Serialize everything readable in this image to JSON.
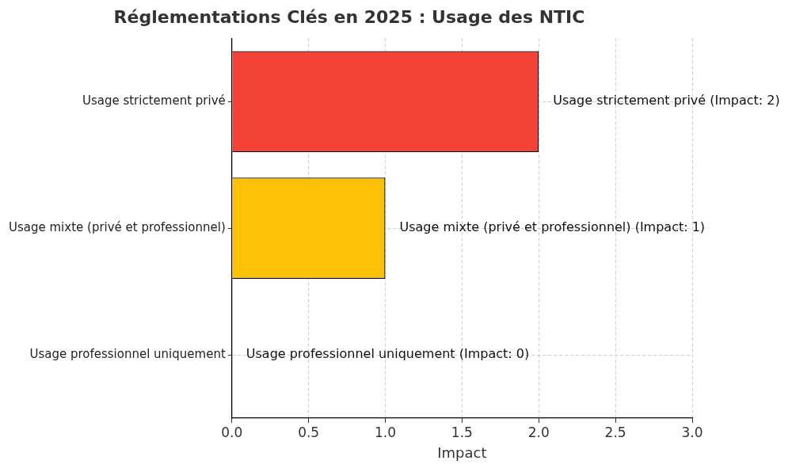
{
  "chart_data": {
    "type": "bar",
    "orientation": "horizontal",
    "title": "Réglementations Clés en 2025 : Usage des NTIC",
    "xlabel": "Impact",
    "categories": [
      "Usage strictement privé",
      "Usage mixte (privé et professionnel)",
      "Usage professionnel uniquement"
    ],
    "values": [
      2,
      1,
      0
    ],
    "colors": [
      "#f44336",
      "#ffc107",
      "#4caf50"
    ],
    "xlim": [
      0,
      3
    ],
    "xticks": [
      {
        "value": 0,
        "label": "0.0"
      },
      {
        "value": 0.5,
        "label": "0.5"
      },
      {
        "value": 1,
        "label": "1.0"
      },
      {
        "value": 1.5,
        "label": "1.5"
      },
      {
        "value": 2,
        "label": "2.0"
      },
      {
        "value": 2.5,
        "label": "2.5"
      },
      {
        "value": 3,
        "label": "3.0"
      }
    ],
    "grid": true,
    "annotations": [
      {
        "text": "Usage strictement privé (Impact: 2)",
        "x": 2,
        "y": "Usage strictement privé"
      },
      {
        "text": "Usage mixte (privé et professionnel) (Impact: 1)",
        "x": 1,
        "y": "Usage mixte (privé et professionnel)"
      },
      {
        "text": "Usage professionnel uniquement (Impact: 0)",
        "x": 0,
        "y": "Usage professionnel uniquement"
      }
    ]
  }
}
